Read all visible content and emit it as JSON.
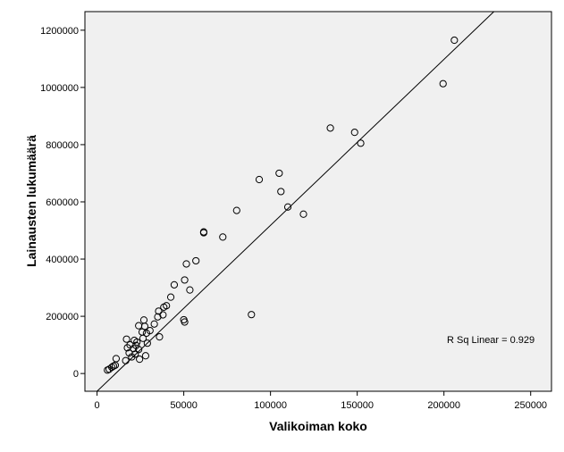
{
  "chart_data": {
    "type": "scatter",
    "title": "",
    "xlabel": "Valikoiman koko",
    "ylabel": "Lainausten lukumäärä",
    "xlim": [
      -7000,
      262000
    ],
    "ylim": [
      -62000,
      1265000
    ],
    "xticks": [
      0,
      50000,
      100000,
      150000,
      200000,
      250000
    ],
    "yticks": [
      0,
      200000,
      400000,
      600000,
      800000,
      1000000,
      1200000
    ],
    "xtick_labels": [
      "0",
      "50000",
      "100000",
      "150000",
      "200000",
      "250000"
    ],
    "ytick_labels": [
      "0",
      "200000",
      "400000",
      "600000",
      "800000",
      "1000000",
      "1200000"
    ],
    "grid": false,
    "annotation": "R Sq Linear = 0.929",
    "fit_line": {
      "slope": 5.8,
      "intercept": -62000
    },
    "points": [
      {
        "x": 206000,
        "y": 1165000
      },
      {
        "x": 199500,
        "y": 1013000
      },
      {
        "x": 134500,
        "y": 858000
      },
      {
        "x": 148500,
        "y": 843000
      },
      {
        "x": 152000,
        "y": 805000
      },
      {
        "x": 105000,
        "y": 700000
      },
      {
        "x": 93500,
        "y": 678000
      },
      {
        "x": 106000,
        "y": 636000
      },
      {
        "x": 110000,
        "y": 582000
      },
      {
        "x": 80500,
        "y": 570000
      },
      {
        "x": 119000,
        "y": 557000
      },
      {
        "x": 61500,
        "y": 495000
      },
      {
        "x": 61500,
        "y": 492000
      },
      {
        "x": 72500,
        "y": 477000
      },
      {
        "x": 57000,
        "y": 394000
      },
      {
        "x": 51500,
        "y": 383000
      },
      {
        "x": 50500,
        "y": 327000
      },
      {
        "x": 44500,
        "y": 310000
      },
      {
        "x": 53500,
        "y": 292000
      },
      {
        "x": 42500,
        "y": 267000
      },
      {
        "x": 40000,
        "y": 237000
      },
      {
        "x": 38500,
        "y": 232000
      },
      {
        "x": 35500,
        "y": 218000
      },
      {
        "x": 38000,
        "y": 205000
      },
      {
        "x": 89000,
        "y": 206000
      },
      {
        "x": 35000,
        "y": 198000
      },
      {
        "x": 50000,
        "y": 188000
      },
      {
        "x": 50500,
        "y": 180000
      },
      {
        "x": 27000,
        "y": 187000
      },
      {
        "x": 33000,
        "y": 173000
      },
      {
        "x": 24000,
        "y": 167000
      },
      {
        "x": 27500,
        "y": 165000
      },
      {
        "x": 30500,
        "y": 150000
      },
      {
        "x": 26000,
        "y": 145000
      },
      {
        "x": 28500,
        "y": 141000
      },
      {
        "x": 36000,
        "y": 128000
      },
      {
        "x": 17000,
        "y": 120000
      },
      {
        "x": 21500,
        "y": 116000
      },
      {
        "x": 26500,
        "y": 123000
      },
      {
        "x": 23000,
        "y": 110000
      },
      {
        "x": 29000,
        "y": 106000
      },
      {
        "x": 19000,
        "y": 100000
      },
      {
        "x": 22500,
        "y": 98000
      },
      {
        "x": 17500,
        "y": 90000
      },
      {
        "x": 21000,
        "y": 87000
      },
      {
        "x": 24000,
        "y": 84000
      },
      {
        "x": 18500,
        "y": 72000
      },
      {
        "x": 22000,
        "y": 68000
      },
      {
        "x": 28000,
        "y": 62000
      },
      {
        "x": 20000,
        "y": 58000
      },
      {
        "x": 11000,
        "y": 52000
      },
      {
        "x": 24500,
        "y": 50000
      },
      {
        "x": 16500,
        "y": 45000
      },
      {
        "x": 10500,
        "y": 29000
      },
      {
        "x": 9500,
        "y": 26000
      },
      {
        "x": 8500,
        "y": 22000
      },
      {
        "x": 7000,
        "y": 15000
      },
      {
        "x": 6000,
        "y": 12000
      }
    ]
  }
}
